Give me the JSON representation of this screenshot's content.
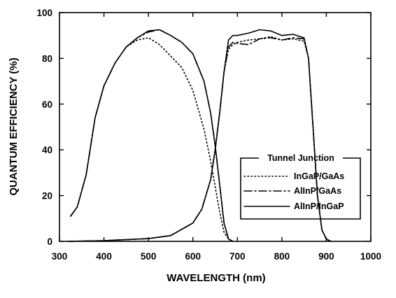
{
  "chart_data": {
    "type": "line",
    "title": "",
    "xlabel": "WAVELENGTH (nm)",
    "ylabel": "QUANTUM EFFICIENCY (%)",
    "xlim": [
      300,
      1000
    ],
    "ylim": [
      0,
      100
    ],
    "x_ticks": [
      "300",
      "400",
      "500",
      "600",
      "700",
      "800",
      "900",
      "1000"
    ],
    "y_ticks": [
      "0",
      "20",
      "40",
      "60",
      "80",
      "100"
    ],
    "grid": false,
    "legend": {
      "title": "Tunnel Junction",
      "placement": "center-right",
      "entries": [
        "InGaP/GaAs",
        "AlInP/GaAs",
        "AlInP/InGaP"
      ]
    },
    "series": [
      {
        "name": "InGaP/GaAs",
        "style": "dotted",
        "segments": [
          {
            "x": [
              325,
              340,
              360,
              380,
              400,
              425,
              450,
              475,
              500,
              525,
              550,
              575,
              600,
              625,
              640,
              650,
              660,
              670,
              680,
              690
            ],
            "y": [
              11,
              15,
              29,
              54,
              68,
              78,
              85,
              88,
              89,
              86,
              81,
              76,
              66,
              49,
              35,
              24,
              13,
              4,
              1,
              0
            ]
          },
          {
            "x": [
              320,
              400,
              500,
              550,
              600,
              620,
              640,
              650,
              660,
              670,
              680,
              690,
              700,
              725,
              750,
              775,
              800,
              825,
              850,
              860,
              870,
              880,
              890,
              900,
              910
            ],
            "y": [
              0,
              0.3,
              1.2,
              2.5,
              8,
              14,
              27,
              40,
              56,
              74,
              84,
              86,
              87,
              88,
              88.5,
              89.5,
              88,
              88.5,
              87.5,
              80,
              50,
              20,
              5,
              1,
              0
            ]
          }
        ]
      },
      {
        "name": "AlInP/GaAs",
        "style": "dashdot",
        "segments": [
          {
            "x": [
              325,
              340,
              360,
              380,
              400,
              425,
              450,
              475,
              500,
              525,
              550,
              575,
              600,
              625,
              640,
              650,
              660,
              670,
              680,
              690
            ],
            "y": [
              11,
              15,
              29,
              54,
              68,
              78,
              85,
              89,
              91.5,
              92.5,
              90,
              87,
              82,
              70,
              56,
              42,
              25,
              8,
              1,
              0
            ]
          },
          {
            "x": [
              320,
              400,
              500,
              550,
              600,
              620,
              640,
              650,
              660,
              670,
              680,
              690,
              700,
              725,
              750,
              775,
              800,
              825,
              850,
              860,
              870,
              880,
              890,
              900,
              910
            ],
            "y": [
              0,
              0.3,
              1.2,
              2.5,
              8,
              14,
              27,
              40,
              56,
              74,
              85,
              87,
              86.5,
              86,
              88.5,
              89,
              88,
              89,
              88.5,
              80,
              50,
              20,
              5,
              1,
              0
            ]
          }
        ]
      },
      {
        "name": "AlInP/InGaP",
        "style": "solid",
        "segments": [
          {
            "x": [
              325,
              340,
              360,
              380,
              400,
              425,
              450,
              475,
              500,
              525,
              550,
              575,
              600,
              625,
              640,
              650,
              660,
              670,
              680,
              690
            ],
            "y": [
              11,
              15,
              29,
              54,
              68,
              78,
              85,
              89,
              92,
              92.5,
              90,
              87,
              82,
              70,
              56,
              42,
              25,
              8,
              1,
              0
            ]
          },
          {
            "x": [
              320,
              400,
              500,
              550,
              600,
              620,
              640,
              650,
              660,
              670,
              680,
              690,
              700,
              725,
              750,
              775,
              800,
              825,
              850,
              860,
              870,
              880,
              890,
              900,
              910
            ],
            "y": [
              0,
              0.3,
              1.2,
              2.5,
              8,
              14,
              27,
              40,
              56,
              74,
              88,
              90,
              90,
              91,
              92.5,
              92,
              90,
              90.5,
              89,
              80,
              50,
              20,
              5,
              1,
              0
            ]
          }
        ]
      }
    ]
  }
}
